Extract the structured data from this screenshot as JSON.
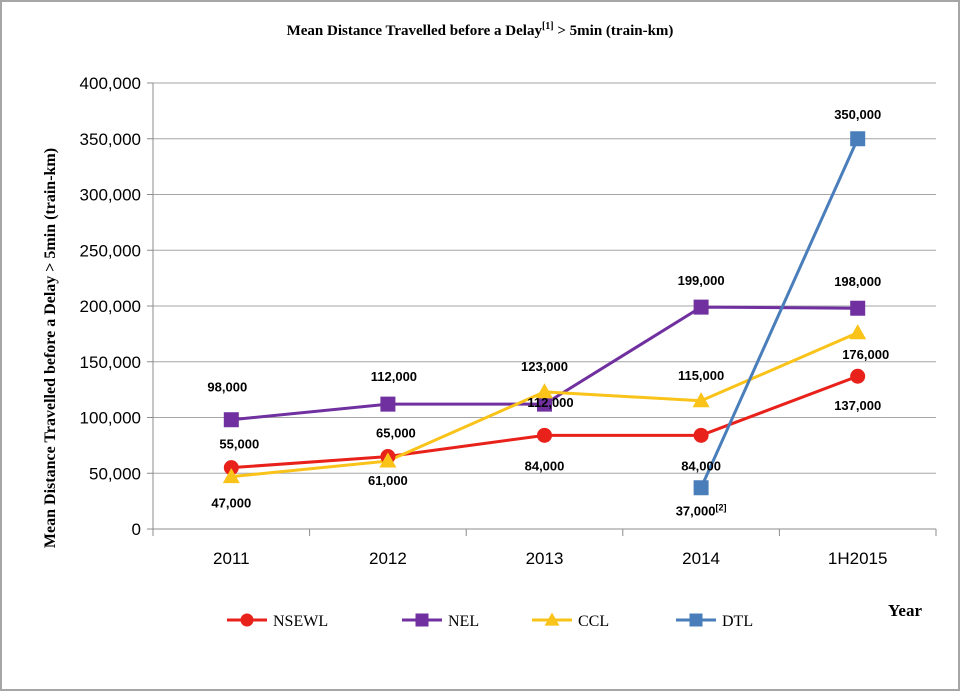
{
  "chart_data": {
    "type": "line",
    "title": "Mean Distance Travelled before a Delay",
    "title_sup": "[1]",
    "title_suffix": " > 5min (train-km)",
    "xlabel": "Year",
    "ylabel": "Mean Distance Travelled before a Delay > 5min (train-km)",
    "categories": [
      "2011",
      "2012",
      "2013",
      "2014",
      "1H2015"
    ],
    "ylim": [
      0,
      400000
    ],
    "yticks": [
      0,
      50000,
      100000,
      150000,
      200000,
      250000,
      300000,
      350000,
      400000
    ],
    "ytick_labels": [
      "0",
      "50,000",
      "100,000",
      "150,000",
      "200,000",
      "250,000",
      "300,000",
      "350,000",
      "400,000"
    ],
    "grid": true,
    "legend_position": "bottom",
    "series": [
      {
        "name": "NSEWL",
        "color": "#e8221b",
        "marker": "circle",
        "values": [
          55000,
          65000,
          84000,
          84000,
          137000
        ],
        "labels": [
          "55,000",
          "65,000",
          "84,000",
          "84,000",
          "137,000"
        ]
      },
      {
        "name": "NEL",
        "color": "#7030a0",
        "marker": "square",
        "values": [
          98000,
          112000,
          112000,
          199000,
          198000
        ],
        "labels": [
          "98,000",
          "112,000",
          "112,000",
          "199,000",
          "198,000"
        ]
      },
      {
        "name": "CCL",
        "color": "#f9c31a",
        "marker": "triangle",
        "values": [
          47000,
          61000,
          123000,
          115000,
          176000
        ],
        "labels": [
          "47,000",
          "61,000",
          "123,000",
          "115,000",
          "176,000"
        ]
      },
      {
        "name": "DTL",
        "color": "#4a7ebb",
        "marker": "square",
        "values": [
          null,
          null,
          null,
          37000,
          350000
        ],
        "labels": [
          null,
          null,
          null,
          "37,000",
          "350,000"
        ],
        "label_sups": [
          null,
          null,
          null,
          "[2]",
          null
        ]
      }
    ]
  }
}
